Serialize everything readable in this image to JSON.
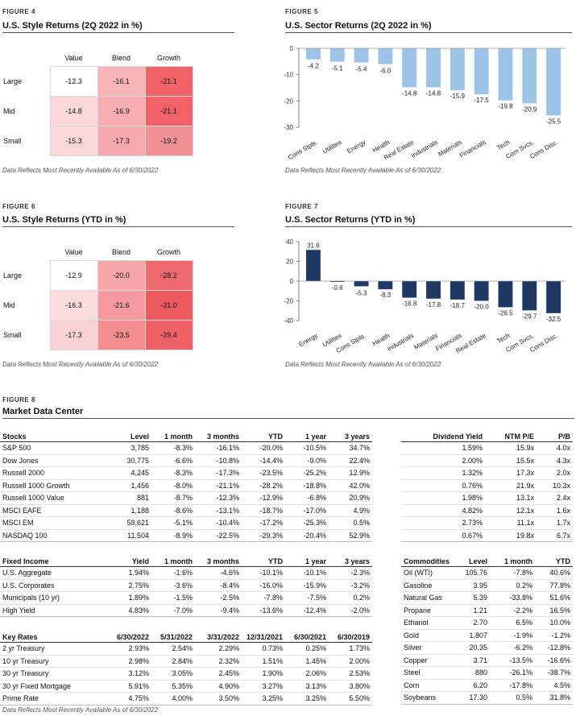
{
  "fig4": {
    "label": "FIGURE 4",
    "title": "U.S. Style Returns (2Q 2022 in %)",
    "columns": [
      "Value",
      "Blend",
      "Growth"
    ],
    "rows": [
      {
        "label": "Large",
        "values": [
          "-12.3",
          "-16.1",
          "-21.1"
        ]
      },
      {
        "label": "Mid",
        "values": [
          "-14.8",
          "-16.9",
          "-21.1"
        ]
      },
      {
        "label": "Small",
        "values": [
          "-15.3",
          "-17.3",
          "-19.2"
        ]
      }
    ],
    "cell_colors": [
      [
        "#ffffff",
        "#f7b5b7",
        "#ef6268"
      ],
      [
        "#fbd9da",
        "#f6aeb1",
        "#ef6268"
      ],
      [
        "#fbd9da",
        "#f6aaad",
        "#f29195"
      ]
    ],
    "note": "Data Reflects Most Recently Available As of 6/30/2022"
  },
  "fig5": {
    "label": "FIGURE 5",
    "title": "U.S. Sector Returns (2Q 2022 in %)",
    "note": "Data Reflects Most Recently Available As of 6/30/2022",
    "chart_data": {
      "type": "bar",
      "categories": [
        "Cons Stpls.",
        "Utilities",
        "Energy",
        "Health",
        "Real Estate",
        "Industrials",
        "Materials",
        "Financials",
        "Tech",
        "Com Svcs.",
        "Cons Disc."
      ],
      "values": [
        -4.2,
        -5.1,
        -5.4,
        -6.0,
        -14.8,
        -14.8,
        -15.9,
        -17.5,
        -19.8,
        -20.9,
        -25.5
      ],
      "value_labels": [
        "-4.2",
        "-5.1",
        "-5.4",
        "-6.0",
        "-14.8",
        "-14.8",
        "-15.9",
        "-17.5",
        "-19.8",
        "-20.9",
        "-25.5"
      ],
      "yticks": [
        0,
        -10,
        -20,
        -30
      ],
      "ytick_labels": [
        "0",
        "-10",
        "-20",
        "-30"
      ],
      "ylim": [
        -30,
        0
      ],
      "color": "#9dc3e6"
    }
  },
  "fig6": {
    "label": "FIGURE 6",
    "title": "U.S. Style Returns (YTD in %)",
    "columns": [
      "Value",
      "Blend",
      "Growth"
    ],
    "rows": [
      {
        "label": "Large",
        "values": [
          "-12.9",
          "-20.0",
          "-28.2"
        ]
      },
      {
        "label": "Mid",
        "values": [
          "-16.3",
          "-21.6",
          "-31.0"
        ]
      },
      {
        "label": "Small",
        "values": [
          "-17.3",
          "-23.5",
          "-29.4"
        ]
      }
    ],
    "cell_colors": [
      [
        "#ffffff",
        "#f6a5a8",
        "#ef6a70"
      ],
      [
        "#fcdcdd",
        "#f59a9e",
        "#ec5a60"
      ],
      [
        "#fbd3d5",
        "#f48d91",
        "#ee6267"
      ]
    ],
    "note": "Data Reflects Most Recently Available As of 6/30/2022"
  },
  "fig7": {
    "label": "FIGURE 7",
    "title": "U.S. Sector Returns (YTD in %)",
    "note": "Data Reflects Most Recently Available As of 6/30/2022",
    "chart_data": {
      "type": "bar",
      "categories": [
        "Energy",
        "Utilities",
        "Cons Stpls.",
        "Health",
        "Industrials",
        "Materials",
        "Financials",
        "Real Estate",
        "Tech",
        "Com Svcs.",
        "Cons Disc."
      ],
      "values": [
        31.6,
        -0.6,
        -5.3,
        -8.3,
        -16.8,
        -17.8,
        -18.7,
        -20.0,
        -26.5,
        -29.7,
        -32.5
      ],
      "value_labels": [
        "31.6",
        "-0.6",
        "-5.3",
        "-8.3",
        "-16.8",
        "-17.8",
        "-18.7",
        "-20.0",
        "-26.5",
        "-29.7",
        "-32.5"
      ],
      "yticks": [
        40,
        20,
        0,
        -20,
        -40
      ],
      "ytick_labels": [
        "40",
        "20",
        "0",
        "-20",
        "-40"
      ],
      "ylim": [
        -40,
        40
      ],
      "color": "#1f3864"
    }
  },
  "fig8": {
    "label": "FIGURE 8",
    "title": "Market Data Center",
    "stocks": {
      "headers": [
        "Stocks",
        "Level",
        "1 month",
        "3 months",
        "YTD",
        "1 year",
        "3 years"
      ],
      "rows": [
        [
          "S&P 500",
          "3,785",
          "-8.3%",
          "-16.1%",
          "-20.0%",
          "-10.5%",
          "34.7%"
        ],
        [
          "Dow Jones",
          "30,775",
          "-6.6%",
          "-10.8%",
          "-14.4%",
          "-9.0%",
          "22.4%"
        ],
        [
          "Russell 2000",
          "4,245",
          "-8.3%",
          "-17.3%",
          "-23.5%",
          "-25.2%",
          "12.9%"
        ],
        [
          "Russell 1000 Growth",
          "1,456",
          "-8.0%",
          "-21.1%",
          "-28.2%",
          "-18.8%",
          "42.0%"
        ],
        [
          "Russell 1000 Value",
          "881",
          "-8.7%",
          "-12.3%",
          "-12.9%",
          "-6.8%",
          "20.9%"
        ],
        [
          "MSCI EAFE",
          "1,188",
          "-8.6%",
          "-13.1%",
          "-18.7%",
          "-17.0%",
          "4.9%"
        ],
        [
          "MSCI EM",
          "59,621",
          "-5.1%",
          "-10.4%",
          "-17.2%",
          "-25.3%",
          "0.5%"
        ],
        [
          "NASDAQ 100",
          "11,504",
          "-8.9%",
          "-22.5%",
          "-29.3%",
          "-20.4%",
          "52.9%"
        ]
      ]
    },
    "dividend": {
      "headers": [
        "Dividend Yield",
        "NTM P/E",
        "P/B"
      ],
      "rows": [
        [
          "1.59%",
          "15.9x",
          "4.0x"
        ],
        [
          "2.00%",
          "15.5x",
          "4.3x"
        ],
        [
          "1.32%",
          "17.3x",
          "2.0x"
        ],
        [
          "0.76%",
          "21.9x",
          "10.3x"
        ],
        [
          "1.98%",
          "13.1x",
          "2.4x"
        ],
        [
          "4.82%",
          "12.1x",
          "1.6x"
        ],
        [
          "2.73%",
          "11.1x",
          "1.7x"
        ],
        [
          "0.67%",
          "19.8x",
          "6.7x"
        ]
      ]
    },
    "fixed_income": {
      "headers": [
        "Fixed Income",
        "Yield",
        "1 month",
        "3 months",
        "YTD",
        "1 year",
        "3 years"
      ],
      "rows": [
        [
          "U.S. Aggregate",
          "1.94%",
          "-1.6%",
          "-4.6%",
          "-10.1%",
          "-10.1%",
          "-2.3%"
        ],
        [
          "U.S. Corporates",
          "2.75%",
          "-3.6%",
          "-8.4%",
          "-16.0%",
          "-15.9%",
          "-3.2%"
        ],
        [
          "Municipals (10 yr)",
          "1.89%",
          "-1.5%",
          "-2.5%",
          "-7.8%",
          "-7.5%",
          "0.2%"
        ],
        [
          "High Yield",
          "4.83%",
          "-7.0%",
          "-9.4%",
          "-13.6%",
          "-12.4%",
          "-2.0%"
        ]
      ]
    },
    "key_rates": {
      "headers": [
        "Key Rates",
        "6/30/2022",
        "5/31/2022",
        "3/31/2022",
        "12/31/2021",
        "6/30/2021",
        "6/30/2019"
      ],
      "rows": [
        [
          "2 yr Treasury",
          "2.93%",
          "2.54%",
          "2.29%",
          "0.73%",
          "0.25%",
          "1.73%"
        ],
        [
          "10 yr Treasury",
          "2.98%",
          "2.84%",
          "2.32%",
          "1.51%",
          "1.45%",
          "2.00%"
        ],
        [
          "30 yr Treasury",
          "3.12%",
          "3.05%",
          "2.45%",
          "1.90%",
          "2.06%",
          "2.53%"
        ],
        [
          "30 yr Fixed Mortgage",
          "5.91%",
          "5.35%",
          "4.90%",
          "3.27%",
          "3.13%",
          "3.80%"
        ],
        [
          "Prime Rate",
          "4.75%",
          "4.00%",
          "3.50%",
          "3.25%",
          "3.25%",
          "5.50%"
        ]
      ]
    },
    "commodities": {
      "headers": [
        "Commodities",
        "Level",
        "1 month",
        "YTD"
      ],
      "rows": [
        [
          "Oil (WTI)",
          "105.76",
          "-7.8%",
          "40.6%"
        ],
        [
          "Gasoline",
          "3.95",
          "0.2%",
          "77.8%"
        ],
        [
          "Natural Gas",
          "5.39",
          "-33.8%",
          "51.6%"
        ],
        [
          "Propane",
          "1.21",
          "-2.2%",
          "16.5%"
        ],
        [
          "Ethanol",
          "2.70",
          "6.5%",
          "10.0%"
        ],
        [
          "Gold",
          "1,807",
          "-1.9%",
          "-1.2%"
        ],
        [
          "Silver",
          "20.35",
          "-6.2%",
          "-12.8%"
        ],
        [
          "Copper",
          "3.71",
          "-13.5%",
          "-16.6%"
        ],
        [
          "Steel",
          "880",
          "-26.1%",
          "-38.7%"
        ],
        [
          "Corn",
          "6.20",
          "-17.8%",
          "4.5%"
        ],
        [
          "Soybeans",
          "17.30",
          "0.5%",
          "31.8%"
        ]
      ]
    },
    "note": "Data Reflects Most Recently Available As of 6/30/2022"
  }
}
